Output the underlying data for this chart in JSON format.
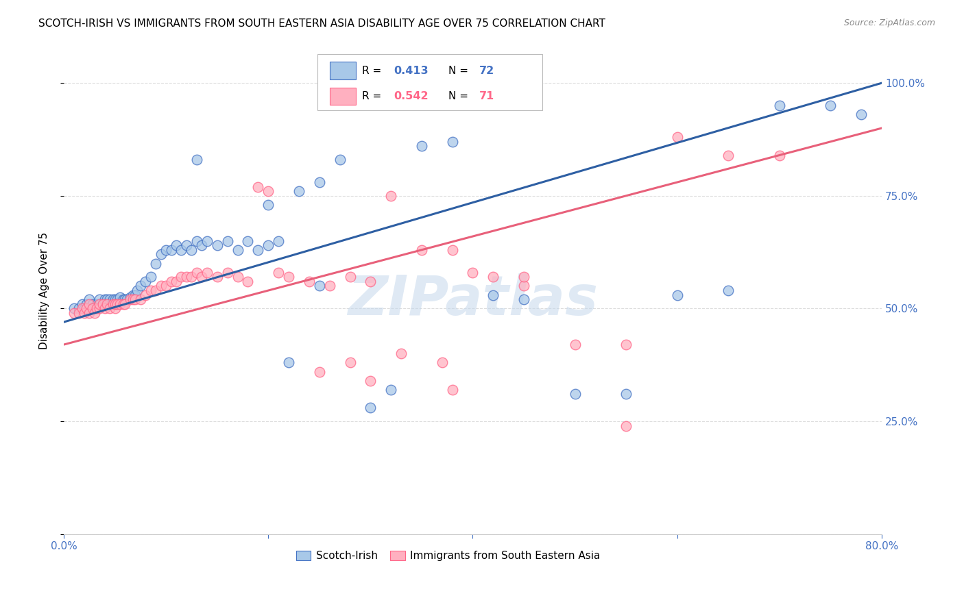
{
  "title": "SCOTCH-IRISH VS IMMIGRANTS FROM SOUTH EASTERN ASIA DISABILITY AGE OVER 75 CORRELATION CHART",
  "source": "Source: ZipAtlas.com",
  "ylabel": "Disability Age Over 75",
  "ytick_vals": [
    0.0,
    0.25,
    0.5,
    0.75,
    1.0
  ],
  "ytick_labels": [
    "",
    "25.0%",
    "50.0%",
    "75.0%",
    "100.0%"
  ],
  "xlim": [
    0.0,
    0.8
  ],
  "ylim": [
    0.0,
    1.08
  ],
  "blue_fill": "#A8C8E8",
  "blue_edge": "#4472C4",
  "pink_fill": "#FFB0C0",
  "pink_edge": "#FF6688",
  "blue_line_color": "#2E5FA3",
  "pink_line_color": "#E8607A",
  "watermark_color": "#C5D8EC",
  "grid_color": "#DDDDDD",
  "background_color": "#FFFFFF",
  "tick_color": "#4472C4",
  "blue_line_x0": 0.0,
  "blue_line_y0": 0.47,
  "blue_line_x1": 0.8,
  "blue_line_y1": 1.0,
  "pink_line_x0": 0.0,
  "pink_line_y0": 0.42,
  "pink_line_x1": 0.8,
  "pink_line_y1": 0.9,
  "blue_x": [
    0.01,
    0.015,
    0.018,
    0.02,
    0.022,
    0.025,
    0.025,
    0.028,
    0.03,
    0.032,
    0.035,
    0.035,
    0.038,
    0.04,
    0.04,
    0.042,
    0.045,
    0.045,
    0.048,
    0.05,
    0.05,
    0.052,
    0.055,
    0.055,
    0.058,
    0.06,
    0.062,
    0.065,
    0.068,
    0.07,
    0.072,
    0.075,
    0.08,
    0.085,
    0.09,
    0.095,
    0.1,
    0.105,
    0.11,
    0.115,
    0.12,
    0.125,
    0.13,
    0.135,
    0.14,
    0.15,
    0.16,
    0.17,
    0.18,
    0.19,
    0.2,
    0.21,
    0.22,
    0.23,
    0.25,
    0.27,
    0.3,
    0.32,
    0.35,
    0.38,
    0.42,
    0.45,
    0.5,
    0.55,
    0.6,
    0.65,
    0.7,
    0.75,
    0.78,
    0.2,
    0.25,
    0.13
  ],
  "blue_y": [
    0.5,
    0.5,
    0.51,
    0.5,
    0.51,
    0.5,
    0.52,
    0.51,
    0.5,
    0.51,
    0.51,
    0.52,
    0.51,
    0.51,
    0.52,
    0.52,
    0.51,
    0.52,
    0.52,
    0.51,
    0.52,
    0.52,
    0.515,
    0.525,
    0.52,
    0.52,
    0.52,
    0.525,
    0.53,
    0.53,
    0.54,
    0.55,
    0.56,
    0.57,
    0.6,
    0.62,
    0.63,
    0.63,
    0.64,
    0.63,
    0.64,
    0.63,
    0.65,
    0.64,
    0.65,
    0.64,
    0.65,
    0.63,
    0.65,
    0.63,
    0.64,
    0.65,
    0.38,
    0.76,
    0.55,
    0.83,
    0.28,
    0.32,
    0.86,
    0.87,
    0.53,
    0.52,
    0.31,
    0.31,
    0.53,
    0.54,
    0.95,
    0.95,
    0.93,
    0.73,
    0.78,
    0.83
  ],
  "pink_x": [
    0.01,
    0.015,
    0.018,
    0.02,
    0.022,
    0.025,
    0.025,
    0.028,
    0.03,
    0.032,
    0.035,
    0.035,
    0.038,
    0.04,
    0.042,
    0.045,
    0.048,
    0.05,
    0.05,
    0.052,
    0.055,
    0.058,
    0.06,
    0.065,
    0.068,
    0.07,
    0.075,
    0.08,
    0.085,
    0.09,
    0.095,
    0.1,
    0.105,
    0.11,
    0.115,
    0.12,
    0.125,
    0.13,
    0.135,
    0.14,
    0.15,
    0.16,
    0.17,
    0.18,
    0.19,
    0.2,
    0.21,
    0.22,
    0.24,
    0.26,
    0.28,
    0.3,
    0.32,
    0.35,
    0.38,
    0.42,
    0.45,
    0.5,
    0.55,
    0.6,
    0.65,
    0.7,
    0.28,
    0.33,
    0.37,
    0.4,
    0.45,
    0.25,
    0.3,
    0.38,
    0.55
  ],
  "pink_y": [
    0.49,
    0.49,
    0.5,
    0.49,
    0.5,
    0.49,
    0.51,
    0.5,
    0.49,
    0.5,
    0.5,
    0.51,
    0.51,
    0.5,
    0.51,
    0.5,
    0.51,
    0.5,
    0.51,
    0.51,
    0.51,
    0.51,
    0.51,
    0.52,
    0.52,
    0.52,
    0.52,
    0.53,
    0.54,
    0.54,
    0.55,
    0.55,
    0.56,
    0.56,
    0.57,
    0.57,
    0.57,
    0.58,
    0.57,
    0.58,
    0.57,
    0.58,
    0.57,
    0.56,
    0.77,
    0.76,
    0.58,
    0.57,
    0.56,
    0.55,
    0.57,
    0.56,
    0.75,
    0.63,
    0.63,
    0.57,
    0.55,
    0.42,
    0.42,
    0.88,
    0.84,
    0.84,
    0.38,
    0.4,
    0.38,
    0.58,
    0.57,
    0.36,
    0.34,
    0.32,
    0.24
  ]
}
